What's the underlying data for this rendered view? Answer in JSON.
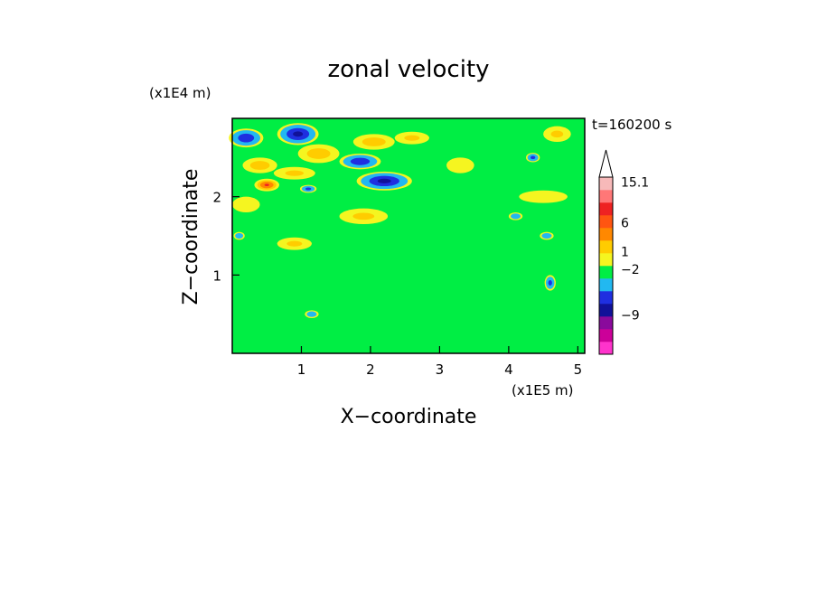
{
  "chart_data": {
    "type": "heatmap",
    "title": "zonal velocity",
    "xlabel": "X−coordinate",
    "ylabel": "Z−coordinate",
    "x_unit": "(x1E5 m)",
    "y_unit": "(x1E4 m)",
    "time_label": "t=160200 s",
    "xlim": [
      0,
      5.1
    ],
    "ylim": [
      0,
      3.0
    ],
    "x_ticks": [
      1,
      2,
      3,
      4,
      5
    ],
    "y_ticks": [
      1,
      2
    ],
    "x_tick_labels": [
      "1",
      "2",
      "3",
      "4",
      "5"
    ],
    "y_tick_labels": [
      "1",
      "2"
    ],
    "colorbar": {
      "tick_labels": [
        "15.1",
        "6",
        "1",
        "−2",
        "−9"
      ],
      "bands_bottom_to_top": [
        "#ff33cc",
        "#cc0099",
        "#8a0a9c",
        "#111199",
        "#1f2fe0",
        "#22b8f0",
        "#00ee44",
        "#f5f520",
        "#ffcc00",
        "#ff8800",
        "#ff5511",
        "#ee2222",
        "#ff7777",
        "#f7b9b9"
      ],
      "extend_top": true
    },
    "blobs": [
      {
        "x": 0.2,
        "z": 2.75,
        "rx": 0.25,
        "rz": 0.12,
        "v": -5
      },
      {
        "x": 0.95,
        "z": 2.8,
        "rx": 0.3,
        "rz": 0.14,
        "v": -6
      },
      {
        "x": 1.85,
        "z": 2.45,
        "rx": 0.3,
        "rz": 0.1,
        "v": -5
      },
      {
        "x": 2.2,
        "z": 2.2,
        "rx": 0.4,
        "rz": 0.12,
        "v": -6
      },
      {
        "x": 1.1,
        "z": 2.1,
        "rx": 0.12,
        "rz": 0.05,
        "v": -4
      },
      {
        "x": 4.35,
        "z": 2.5,
        "rx": 0.1,
        "rz": 0.06,
        "v": -4
      },
      {
        "x": 4.1,
        "z": 1.75,
        "rx": 0.1,
        "rz": 0.05,
        "v": -3
      },
      {
        "x": 4.55,
        "z": 1.5,
        "rx": 0.1,
        "rz": 0.05,
        "v": -3
      },
      {
        "x": 4.6,
        "z": 0.9,
        "rx": 0.08,
        "rz": 0.1,
        "v": -4
      },
      {
        "x": 1.15,
        "z": 0.5,
        "rx": 0.1,
        "rz": 0.05,
        "v": -3
      },
      {
        "x": 0.1,
        "z": 1.5,
        "rx": 0.08,
        "rz": 0.05,
        "v": -3
      },
      {
        "x": 0.4,
        "z": 2.4,
        "rx": 0.25,
        "rz": 0.1,
        "v": 4
      },
      {
        "x": 0.9,
        "z": 2.3,
        "rx": 0.3,
        "rz": 0.08,
        "v": 3
      },
      {
        "x": 1.25,
        "z": 2.55,
        "rx": 0.3,
        "rz": 0.12,
        "v": 4
      },
      {
        "x": 2.05,
        "z": 2.7,
        "rx": 0.3,
        "rz": 0.1,
        "v": 4
      },
      {
        "x": 2.6,
        "z": 2.75,
        "rx": 0.25,
        "rz": 0.08,
        "v": 3
      },
      {
        "x": 1.9,
        "z": 1.75,
        "rx": 0.35,
        "rz": 0.1,
        "v": 3
      },
      {
        "x": 0.9,
        "z": 1.4,
        "rx": 0.25,
        "rz": 0.08,
        "v": 3
      },
      {
        "x": 0.2,
        "z": 1.9,
        "rx": 0.2,
        "rz": 0.1,
        "v": 2
      },
      {
        "x": 4.7,
        "z": 2.8,
        "rx": 0.2,
        "rz": 0.1,
        "v": 3
      },
      {
        "x": 4.5,
        "z": 2.0,
        "rx": 0.35,
        "rz": 0.08,
        "v": 2
      },
      {
        "x": 3.3,
        "z": 2.4,
        "rx": 0.2,
        "rz": 0.1,
        "v": 2
      },
      {
        "x": 0.5,
        "z": 2.15,
        "rx": 0.18,
        "rz": 0.08,
        "v": 8
      }
    ]
  }
}
